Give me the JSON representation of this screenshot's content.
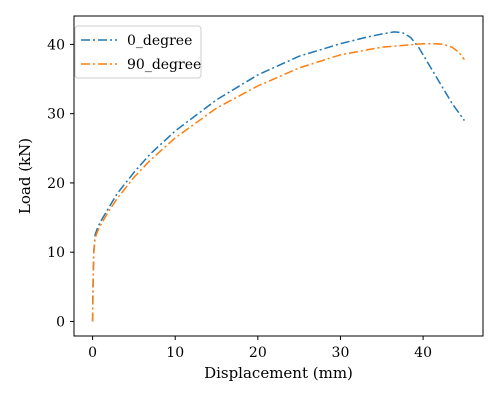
{
  "chart_data": {
    "type": "line",
    "title": "",
    "xlabel": "Displacement (mm)",
    "ylabel": "Load (kN)",
    "xlim": [
      -2.25,
      47.25
    ],
    "ylim": [
      -2.1,
      44.1
    ],
    "xticks": [
      0,
      10,
      20,
      30,
      40
    ],
    "yticks": [
      0,
      10,
      20,
      30,
      40
    ],
    "grid": false,
    "legend_position": "upper-left",
    "series": [
      {
        "name": "0_degree",
        "color": "#1f77b4",
        "linestyle": "dashdot",
        "points": [
          [
            0.0,
            0.0
          ],
          [
            0.05,
            5.0
          ],
          [
            0.15,
            10.0
          ],
          [
            0.3,
            12.5
          ],
          [
            0.6,
            13.5
          ],
          [
            1.0,
            14.5
          ],
          [
            2.0,
            16.5
          ],
          [
            3.0,
            18.5
          ],
          [
            5.0,
            21.5
          ],
          [
            7.0,
            24.2
          ],
          [
            10.0,
            27.5
          ],
          [
            15.0,
            32.0
          ],
          [
            20.0,
            35.6
          ],
          [
            25.0,
            38.3
          ],
          [
            30.0,
            40.1
          ],
          [
            33.0,
            41.0
          ],
          [
            35.0,
            41.5
          ],
          [
            36.5,
            41.8
          ],
          [
            37.5,
            41.7
          ],
          [
            38.5,
            41.0
          ],
          [
            39.5,
            39.5
          ],
          [
            40.5,
            37.5
          ],
          [
            42.0,
            34.5
          ],
          [
            43.5,
            31.5
          ],
          [
            45.0,
            29.0
          ]
        ]
      },
      {
        "name": "90_degree",
        "color": "#ff7f0e",
        "linestyle": "dashdot",
        "points": [
          [
            0.0,
            0.0
          ],
          [
            0.05,
            5.0
          ],
          [
            0.15,
            10.0
          ],
          [
            0.3,
            12.0
          ],
          [
            0.6,
            13.0
          ],
          [
            1.0,
            14.0
          ],
          [
            2.0,
            16.0
          ],
          [
            3.0,
            17.8
          ],
          [
            5.0,
            20.8
          ],
          [
            7.0,
            23.3
          ],
          [
            10.0,
            26.5
          ],
          [
            15.0,
            30.8
          ],
          [
            20.0,
            34.0
          ],
          [
            25.0,
            36.6
          ],
          [
            30.0,
            38.5
          ],
          [
            35.0,
            39.6
          ],
          [
            38.0,
            39.9
          ],
          [
            40.0,
            40.1
          ],
          [
            41.5,
            40.1
          ],
          [
            42.5,
            40.0
          ],
          [
            43.5,
            39.6
          ],
          [
            44.3,
            38.9
          ],
          [
            45.0,
            37.8
          ]
        ]
      }
    ]
  }
}
